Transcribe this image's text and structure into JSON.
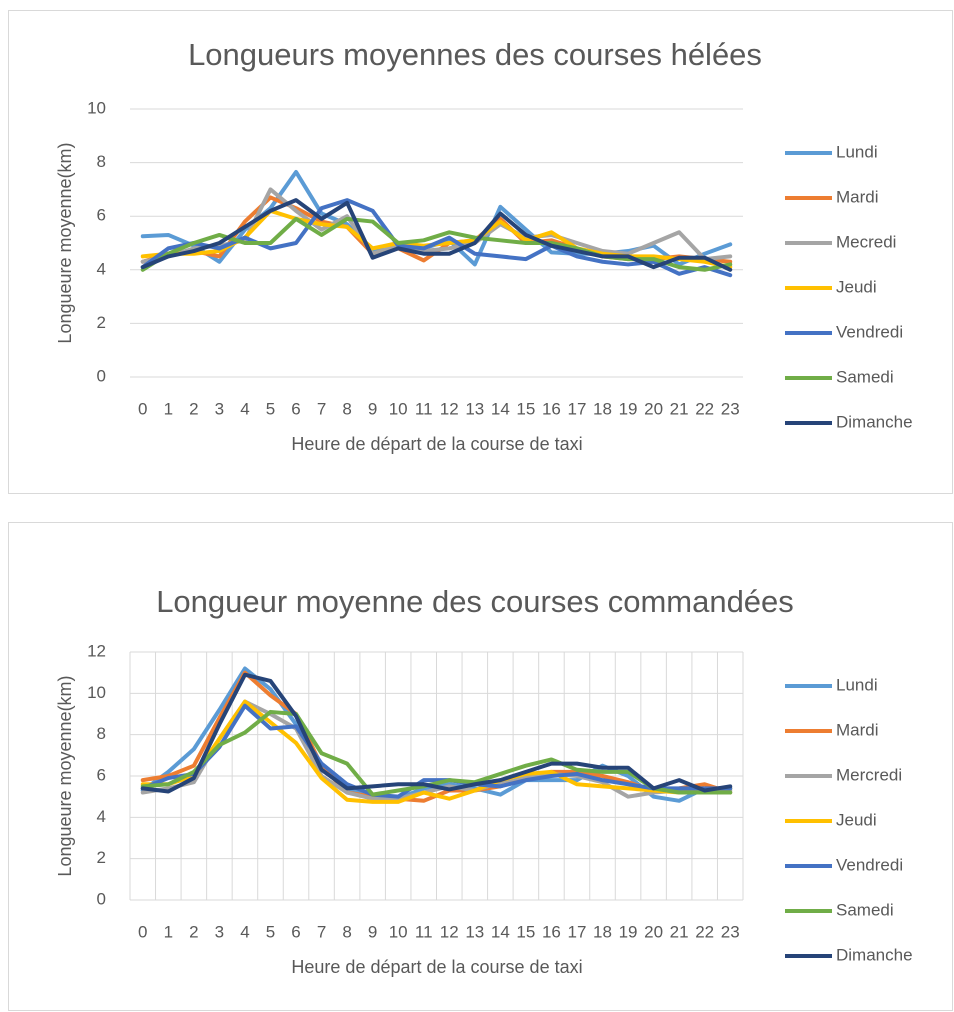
{
  "chart_data": [
    {
      "type": "line",
      "title": "Longueurs moyennes des courses hélées",
      "xlabel": "Heure de départ de la course de taxi",
      "ylabel": "Longueure moyenne(km)",
      "categories": [
        "0",
        "1",
        "2",
        "3",
        "4",
        "5",
        "6",
        "7",
        "8",
        "9",
        "10",
        "11",
        "12",
        "13",
        "14",
        "15",
        "16",
        "17",
        "18",
        "19",
        "20",
        "21",
        "22",
        "23"
      ],
      "ylim": [
        0,
        10
      ],
      "yticks": [
        0,
        2,
        4,
        6,
        8,
        10
      ],
      "grid": true,
      "x_grid": false,
      "legend": "right",
      "series": [
        {
          "name": "Lundi",
          "color": "#5b9bd5",
          "values": [
            5.25,
            5.3,
            4.9,
            4.3,
            5.5,
            6.3,
            7.65,
            6.1,
            5.7,
            4.7,
            4.8,
            4.8,
            5.1,
            4.2,
            6.35,
            5.5,
            4.65,
            4.6,
            4.6,
            4.7,
            4.9,
            4.2,
            4.6,
            4.95
          ]
        },
        {
          "name": "Mardi",
          "color": "#ed7d31",
          "values": [
            4.3,
            4.6,
            4.7,
            4.5,
            5.8,
            6.7,
            6.3,
            5.8,
            5.6,
            4.6,
            4.8,
            4.35,
            5.0,
            5.1,
            5.9,
            5.0,
            5.1,
            4.8,
            4.5,
            4.4,
            4.4,
            4.5,
            4.4,
            4.3
          ]
        },
        {
          "name": "Mecredi",
          "color": "#a5a5a5",
          "values": [
            4.3,
            4.5,
            4.8,
            4.9,
            5.1,
            7.0,
            6.2,
            5.5,
            6.0,
            4.6,
            4.9,
            4.7,
            4.8,
            5.0,
            5.7,
            5.2,
            5.3,
            5.0,
            4.7,
            4.6,
            5.0,
            5.4,
            4.4,
            4.5
          ]
        },
        {
          "name": "Jeudi",
          "color": "#ffc000",
          "values": [
            4.5,
            4.6,
            4.6,
            4.7,
            5.2,
            6.2,
            5.9,
            5.7,
            5.6,
            4.8,
            5.0,
            4.9,
            5.0,
            5.1,
            5.8,
            5.1,
            5.4,
            4.8,
            4.6,
            4.5,
            4.5,
            4.4,
            4.3,
            4.1
          ]
        },
        {
          "name": "Vendredi",
          "color": "#4472c4",
          "values": [
            4.1,
            4.8,
            5.0,
            4.8,
            5.2,
            4.8,
            5.0,
            6.3,
            6.6,
            6.2,
            4.9,
            4.8,
            5.2,
            4.6,
            4.5,
            4.4,
            4.9,
            4.5,
            4.3,
            4.2,
            4.3,
            3.85,
            4.1,
            3.8
          ]
        },
        {
          "name": "Samedi",
          "color": "#70ad47",
          "values": [
            4.0,
            4.6,
            5.0,
            5.3,
            5.0,
            5.0,
            5.9,
            5.3,
            5.9,
            5.8,
            5.0,
            5.1,
            5.4,
            5.2,
            5.1,
            5.0,
            5.0,
            4.8,
            4.5,
            4.4,
            4.4,
            4.1,
            4.0,
            4.2
          ]
        },
        {
          "name": "Dimanche",
          "color": "#264478",
          "values": [
            4.1,
            4.5,
            4.7,
            5.0,
            5.6,
            6.2,
            6.6,
            5.9,
            6.5,
            4.45,
            4.8,
            4.6,
            4.6,
            5.0,
            6.1,
            5.3,
            4.9,
            4.7,
            4.5,
            4.5,
            4.1,
            4.45,
            4.45,
            4.0
          ]
        }
      ]
    },
    {
      "type": "line",
      "title": "Longueur moyenne des courses commandées",
      "xlabel": "Heure de départ de la course de taxi",
      "ylabel": "Longueure moyenne(km)",
      "categories": [
        "0",
        "1",
        "2",
        "3",
        "4",
        "5",
        "6",
        "7",
        "8",
        "9",
        "10",
        "11",
        "12",
        "13",
        "14",
        "15",
        "16",
        "17",
        "18",
        "19",
        "20",
        "21",
        "22",
        "23"
      ],
      "ylim": [
        0,
        12
      ],
      "yticks": [
        0,
        2,
        4,
        6,
        8,
        10,
        12
      ],
      "grid": true,
      "x_grid": true,
      "legend": "right",
      "series": [
        {
          "name": "Lundi",
          "color": "#5b9bd5",
          "values": [
            5.3,
            6.2,
            7.3,
            9.2,
            11.2,
            10.2,
            8.5,
            6.4,
            5.4,
            5.1,
            4.9,
            5.4,
            5.6,
            5.4,
            5.1,
            5.8,
            5.8,
            5.8,
            6.5,
            6.0,
            5.0,
            4.8,
            5.4,
            5.4
          ]
        },
        {
          "name": "Mardi",
          "color": "#ed7d31",
          "values": [
            5.8,
            6.0,
            6.5,
            8.8,
            11.0,
            9.9,
            9.0,
            6.5,
            5.2,
            5.0,
            4.9,
            4.8,
            5.3,
            5.3,
            5.5,
            5.9,
            6.2,
            6.2,
            6.0,
            5.7,
            5.3,
            5.4,
            5.6,
            5.2
          ]
        },
        {
          "name": "Mercredi",
          "color": "#a5a5a5",
          "values": [
            5.2,
            5.4,
            5.7,
            7.8,
            9.6,
            9.0,
            8.3,
            6.0,
            5.2,
            4.9,
            4.9,
            5.2,
            5.5,
            5.3,
            5.7,
            6.0,
            6.1,
            6.0,
            5.7,
            5.0,
            5.2,
            5.3,
            5.3,
            5.3
          ]
        },
        {
          "name": "Jeudi",
          "color": "#ffc000",
          "values": [
            5.6,
            5.6,
            6.0,
            7.8,
            9.6,
            8.6,
            7.6,
            5.9,
            4.85,
            4.75,
            4.75,
            5.2,
            4.9,
            5.3,
            5.8,
            6.1,
            6.2,
            5.6,
            5.5,
            5.4,
            5.3,
            5.2,
            5.3,
            5.4
          ]
        },
        {
          "name": "Vendredi",
          "color": "#4472c4",
          "values": [
            5.4,
            5.9,
            6.1,
            7.4,
            9.4,
            8.3,
            8.4,
            6.6,
            5.6,
            5.1,
            5.0,
            5.8,
            5.8,
            5.6,
            5.5,
            5.8,
            6.0,
            6.1,
            5.8,
            5.6,
            5.4,
            5.4,
            5.4,
            5.4
          ]
        },
        {
          "name": "Samedi",
          "color": "#70ad47",
          "values": [
            5.5,
            5.6,
            6.2,
            7.5,
            8.1,
            9.1,
            9.0,
            7.1,
            6.6,
            5.1,
            5.3,
            5.5,
            5.8,
            5.7,
            6.1,
            6.5,
            6.8,
            6.3,
            6.2,
            6.2,
            5.4,
            5.2,
            5.2,
            5.2
          ]
        },
        {
          "name": "Dimanche",
          "color": "#264478",
          "values": [
            5.4,
            5.25,
            5.9,
            8.5,
            10.9,
            10.6,
            8.9,
            6.3,
            5.4,
            5.5,
            5.6,
            5.6,
            5.35,
            5.6,
            5.8,
            6.2,
            6.6,
            6.6,
            6.4,
            6.4,
            5.4,
            5.8,
            5.3,
            5.5
          ]
        }
      ]
    }
  ]
}
